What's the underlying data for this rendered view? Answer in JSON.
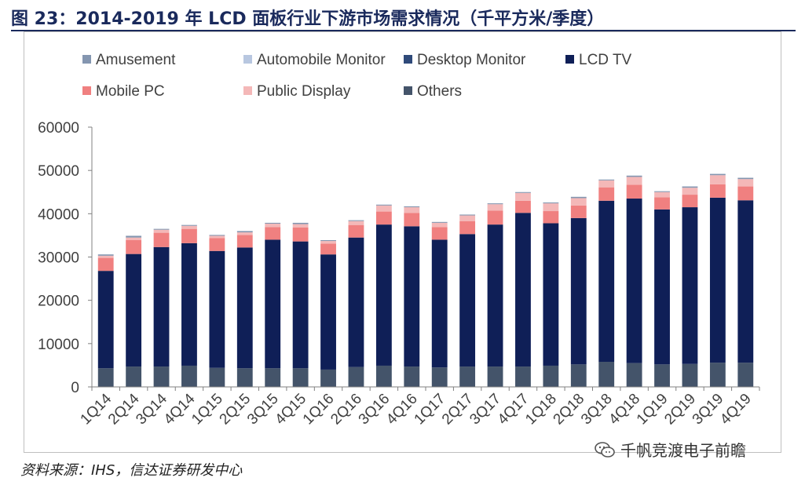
{
  "figure": {
    "title": "图 23：2014-2019 年 LCD 面板行业下游市场需求情况（千平方米/季度）",
    "source": "资料来源：IHS，信达证券研发中心",
    "watermark": "千帆竞渡电子前瞻",
    "watermark_icon": "wechat-icon"
  },
  "chart_data": {
    "type": "bar",
    "stacked": true,
    "title": "",
    "xlabel": "",
    "ylabel": "",
    "ylim": [
      0,
      60000
    ],
    "yticks": [
      0,
      10000,
      20000,
      30000,
      40000,
      50000,
      60000
    ],
    "legend_position": "top",
    "grid": false,
    "categories": [
      "1Q14",
      "2Q14",
      "3Q14",
      "4Q14",
      "1Q15",
      "2Q15",
      "3Q15",
      "4Q15",
      "1Q16",
      "2Q16",
      "3Q16",
      "4Q16",
      "1Q17",
      "2Q17",
      "3Q17",
      "4Q17",
      "1Q18",
      "2Q18",
      "3Q18",
      "4Q18",
      "1Q19",
      "2Q19",
      "3Q19",
      "4Q19"
    ],
    "series": [
      {
        "name": "Others",
        "color": "#44546a",
        "values": [
          4300,
          4700,
          4700,
          4900,
          4400,
          4300,
          4300,
          4300,
          4000,
          4600,
          4900,
          4700,
          4500,
          4700,
          4700,
          4700,
          4900,
          5200,
          5800,
          5500,
          5200,
          5300,
          5600,
          5600
        ]
      },
      {
        "name": "Desktop Monitor",
        "color": "#2f4a7a",
        "values": [
          0,
          0,
          0,
          0,
          0,
          0,
          0,
          0,
          0,
          0,
          0,
          0,
          0,
          0,
          0,
          0,
          0,
          0,
          0,
          0,
          0,
          0,
          0,
          0
        ]
      },
      {
        "name": "LCD TV",
        "color": "#0f1f57",
        "values": [
          22500,
          26000,
          27600,
          28300,
          27000,
          27900,
          29700,
          29300,
          26600,
          29900,
          32600,
          32400,
          29500,
          30600,
          32800,
          35500,
          32900,
          33800,
          37200,
          38000,
          35800,
          36200,
          38100,
          37500
        ]
      },
      {
        "name": "Automobile Monitor",
        "color": "#b8c7e0",
        "values": [
          0,
          0,
          0,
          0,
          0,
          0,
          0,
          0,
          0,
          0,
          0,
          0,
          0,
          0,
          0,
          0,
          0,
          0,
          0,
          0,
          0,
          0,
          0,
          0
        ]
      },
      {
        "name": "Mobile PC",
        "color": "#f08080",
        "values": [
          3000,
          3200,
          3300,
          3300,
          3000,
          2900,
          2900,
          3200,
          2500,
          2900,
          3000,
          3100,
          2900,
          3000,
          3200,
          2800,
          2800,
          2900,
          3100,
          3200,
          2800,
          2900,
          3100,
          3200
        ]
      },
      {
        "name": "Public Display",
        "color": "#f4b8b8",
        "values": [
          500,
          600,
          700,
          700,
          500,
          600,
          800,
          800,
          600,
          900,
          1400,
          1300,
          1000,
          1300,
          1500,
          1800,
          1800,
          1700,
          1600,
          1800,
          1200,
          1600,
          2100,
          1700
        ]
      },
      {
        "name": "Amusement",
        "color": "#8496b0",
        "values": [
          300,
          400,
          200,
          200,
          200,
          300,
          200,
          300,
          200,
          200,
          200,
          200,
          200,
          200,
          200,
          200,
          200,
          300,
          200,
          300,
          200,
          300,
          300,
          300
        ]
      }
    ],
    "legend_order": [
      "Amusement",
      "Automobile Monitor",
      "Desktop Monitor",
      "LCD TV",
      "Mobile PC",
      "Public Display",
      "Others"
    ]
  }
}
